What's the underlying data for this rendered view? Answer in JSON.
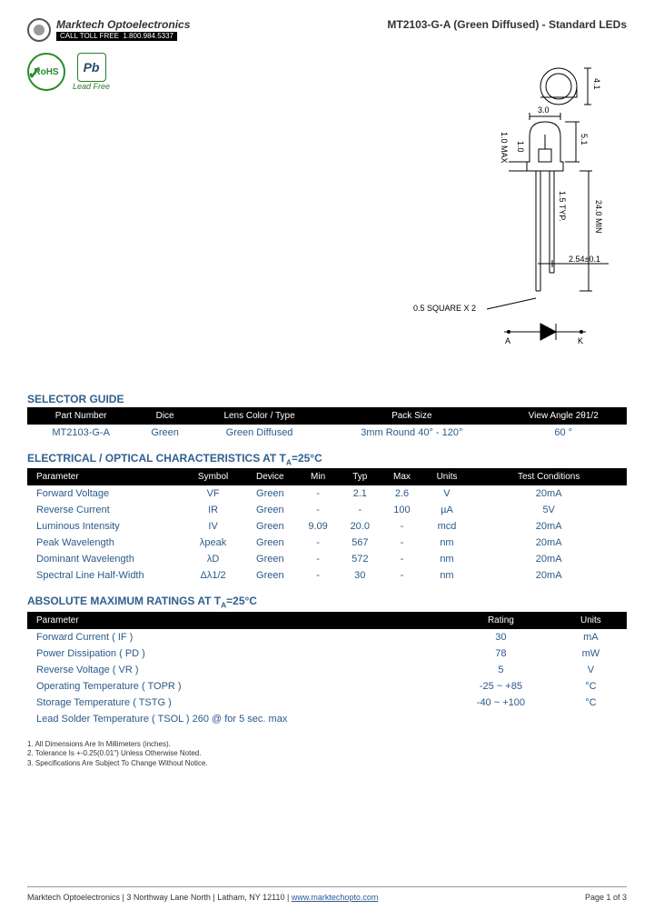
{
  "company": {
    "name": "Marktech Optoelectronics",
    "call_label": "CALL TOLL FREE",
    "phone": "1.800.984.5337"
  },
  "doc_title": "MT2103-G-A (Green Diffused) - Standard LEDs",
  "badges": {
    "rohs": "RoHS",
    "pb": "Pb",
    "leadfree": "Lead Free"
  },
  "diagram": {
    "top_dim": "4.1",
    "width_dim": "3.0",
    "height_body": "5.1",
    "over_max": "1.0 MAX",
    "body_len": "1.0",
    "lead_typ": "1.5 TYP.",
    "min_len": "24.0 MIN",
    "pitch": "2.54±0.1",
    "lead_spec": "0.5 SQUARE X 2",
    "anode": "A",
    "cathode": "K"
  },
  "selector": {
    "title": "SELECTOR GUIDE",
    "headers": [
      "Part Number",
      "Dice",
      "Lens Color / Type",
      "Pack Size",
      "View Angle 2θ1/2"
    ],
    "row": [
      "MT2103-G-A",
      "Green",
      "Green Diffused",
      "3mm Round 40° - 120°",
      "60 °"
    ]
  },
  "electrical": {
    "title": "ELECTRICAL / OPTICAL CHARACTERISTICS AT T",
    "title_sub": "A",
    "title_suffix": "=25°C",
    "headers": [
      "Parameter",
      "Symbol",
      "Device",
      "Min",
      "Typ",
      "Max",
      "Units",
      "Test Conditions"
    ],
    "rows": [
      [
        "Forward Voltage",
        "VF",
        "Green",
        "-",
        "2.1",
        "2.6",
        "V",
        "20mA"
      ],
      [
        "Reverse Current",
        "IR",
        "Green",
        "-",
        "-",
        "100",
        "µA",
        "5V"
      ],
      [
        "Luminous Intensity",
        "IV",
        "Green",
        "9.09",
        "20.0",
        "-",
        "mcd",
        "20mA"
      ],
      [
        "Peak Wavelength",
        "λpeak",
        "Green",
        "-",
        "567",
        "-",
        "nm",
        "20mA"
      ],
      [
        "Dominant Wavelength",
        "λD",
        "Green",
        "-",
        "572",
        "-",
        "nm",
        "20mA"
      ],
      [
        "Spectral Line Half-Width",
        "Δλ1/2",
        "Green",
        "-",
        "30",
        "-",
        "nm",
        "20mA"
      ]
    ]
  },
  "ratings": {
    "title": "ABSOLUTE MAXIMUM RATINGS AT T",
    "title_sub": "A",
    "title_suffix": "=25°C",
    "headers": [
      "Parameter",
      "Rating",
      "Units"
    ],
    "rows": [
      {
        "p": "Forward Current ( IF )",
        "r": "30",
        "u": "mA"
      },
      {
        "p": "Power Dissipation ( PD )",
        "r": "78",
        "u": "mW"
      },
      {
        "p": "Reverse Voltage ( VR )",
        "r": "5",
        "u": "V"
      },
      {
        "p": "Operating Temperature ( TOPR )",
        "r": "-25 ~ +85",
        "u": "°C"
      },
      {
        "p": "Storage Temperature ( TSTG )",
        "r": "-40 ~ +100",
        "u": "°C"
      },
      {
        "p": "Lead Solder Temperature ( TSOL )   260                          @ for 5 sec. max",
        "r": "",
        "u": ""
      }
    ]
  },
  "notes": [
    "1. All Dimensions Are In Millimeters (inches).",
    "2. Tolerance Is +-0.25(0.01\") Unless Otherwise Noted.",
    "3. Specifications Are Subject To Change Without Notice."
  ],
  "footer": {
    "left": "Marktech Optoelectronics | 3 Northway Lane North | Latham, NY 12110 | ",
    "link": "www.marktechopto.com",
    "right": "Page 1 of 3"
  }
}
